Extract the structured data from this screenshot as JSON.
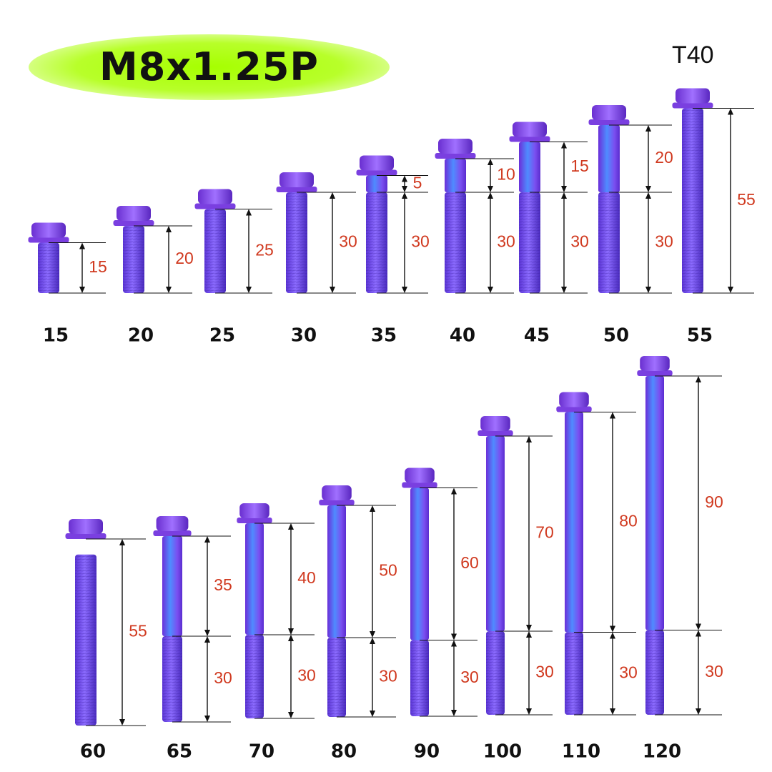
{
  "header": {
    "title": "M8x1.25P",
    "drive": "T40"
  },
  "colors": {
    "glow": "#a6ff00",
    "bolt_body": "#6a3fe0",
    "bolt_head": "#7b3fd8",
    "shank_highlight": "#4f8cff",
    "dimension_text": "#d0391f",
    "label_text": "#111111"
  },
  "bolts": [
    {
      "length": "15",
      "thread": "15",
      "shank": ""
    },
    {
      "length": "20",
      "thread": "20",
      "shank": ""
    },
    {
      "length": "25",
      "thread": "25",
      "shank": ""
    },
    {
      "length": "30",
      "thread": "30",
      "shank": ""
    },
    {
      "length": "35",
      "thread": "30",
      "shank": "5"
    },
    {
      "length": "40",
      "thread": "30",
      "shank": "10"
    },
    {
      "length": "45",
      "thread": "30",
      "shank": "15"
    },
    {
      "length": "50",
      "thread": "30",
      "shank": "20"
    },
    {
      "length": "55",
      "thread": "55",
      "shank": ""
    },
    {
      "length": "60",
      "thread": "55",
      "shank": ""
    },
    {
      "length": "65",
      "thread": "30",
      "shank": "35"
    },
    {
      "length": "70",
      "thread": "30",
      "shank": "40"
    },
    {
      "length": "80",
      "thread": "30",
      "shank": "50"
    },
    {
      "length": "90",
      "thread": "30",
      "shank": "60"
    },
    {
      "length": "100",
      "thread": "30",
      "shank": "70"
    },
    {
      "length": "110",
      "thread": "30",
      "shank": "80"
    },
    {
      "length": "120",
      "thread": "30",
      "shank": "90"
    }
  ]
}
